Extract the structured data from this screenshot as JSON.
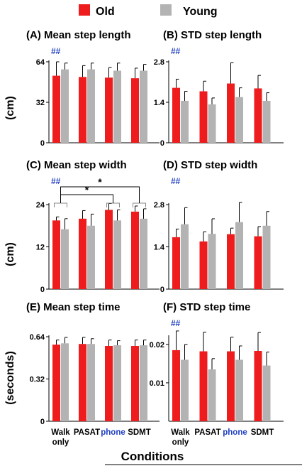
{
  "legend": [
    {
      "label": "Old",
      "color": "#ee1c1c"
    },
    {
      "label": "Young",
      "color": "#b3b3b3"
    }
  ],
  "xlabel": "Conditions",
  "categories": [
    {
      "lines": [
        "Walk",
        "only"
      ],
      "color": "#000000"
    },
    {
      "lines": [
        "PASAT"
      ],
      "color": "#000000"
    },
    {
      "lines": [
        "phone"
      ],
      "color": "#1f3fbf"
    },
    {
      "lines": [
        "SDMT"
      ],
      "color": "#000000"
    }
  ],
  "row_ylabels": [
    "(cm)",
    "(cm)",
    "(seconds)"
  ],
  "annotation_color": "#1f3fbf",
  "chart_data": [
    {
      "type": "bar",
      "panel": "(A)",
      "title": "Mean step length",
      "ylim": [
        0,
        64
      ],
      "ticks": [
        "0",
        "32",
        "64"
      ],
      "tick_values": [
        0,
        32,
        64
      ],
      "series": [
        {
          "name": "Old",
          "values": [
            53,
            52,
            51.5,
            51
          ],
          "errors": [
            11,
            9,
            8,
            8
          ]
        },
        {
          "name": "Young",
          "values": [
            58,
            58,
            57,
            57
          ],
          "errors": [
            5,
            5,
            6,
            5
          ]
        }
      ],
      "annotation": "##"
    },
    {
      "type": "bar",
      "panel": "(B)",
      "title": "STD step length",
      "ylim": [
        0,
        2.8
      ],
      "ticks": [
        "0",
        "1.4",
        "2.8"
      ],
      "tick_values": [
        0,
        1.4,
        2.8
      ],
      "series": [
        {
          "name": "Old",
          "values": [
            1.9,
            1.78,
            2.05,
            1.88
          ],
          "errors": [
            0.3,
            0.35,
            0.72,
            0.45
          ]
        },
        {
          "name": "Young",
          "values": [
            1.45,
            1.33,
            1.58,
            1.45
          ],
          "errors": [
            0.33,
            0.22,
            0.32,
            0.28
          ]
        }
      ],
      "annotation": "##"
    },
    {
      "type": "bar",
      "panel": "(C)",
      "title": "Mean step width",
      "ylim": [
        0,
        24
      ],
      "ticks": [
        "0",
        "12",
        "24"
      ],
      "tick_values": [
        0,
        12,
        24
      ],
      "series": [
        {
          "name": "Old",
          "values": [
            19.5,
            20,
            22.5,
            22
          ],
          "errors": [
            1,
            2.3,
            1.8,
            1.6
          ]
        },
        {
          "name": "Young",
          "values": [
            17,
            18,
            19.5,
            20
          ],
          "errors": [
            3,
            3.3,
            3,
            2.8
          ]
        }
      ],
      "annotation": "##",
      "significance": [
        {
          "from": 0,
          "to": 2,
          "label": "*"
        },
        {
          "from": 0,
          "to": 3,
          "label": "*"
        }
      ]
    },
    {
      "type": "bar",
      "panel": "(D)",
      "title": "STD step width",
      "ylim": [
        0,
        2.8
      ],
      "ticks": [
        "0",
        "1.4",
        "2.8"
      ],
      "tick_values": [
        0,
        1.4,
        2.8
      ],
      "series": [
        {
          "name": "Old",
          "values": [
            1.72,
            1.58,
            1.82,
            1.75
          ],
          "errors": [
            0.27,
            0.32,
            0.2,
            0.32
          ]
        },
        {
          "name": "Young",
          "values": [
            2.15,
            1.83,
            2.22,
            2.1
          ],
          "errors": [
            0.55,
            0.5,
            0.65,
            0.47
          ]
        }
      ],
      "annotation": "##"
    },
    {
      "type": "bar",
      "panel": "(E)",
      "title": "Mean step time",
      "ylim": [
        0,
        0.64
      ],
      "ticks": [
        "0",
        "0.32",
        "0.64"
      ],
      "tick_values": [
        0,
        0.32,
        0.64
      ],
      "series": [
        {
          "name": "Old",
          "values": [
            0.58,
            0.585,
            0.57,
            0.57
          ],
          "errors": [
            0.035,
            0.05,
            0.045,
            0.045
          ]
        },
        {
          "name": "Young",
          "values": [
            0.59,
            0.585,
            0.575,
            0.575
          ],
          "errors": [
            0.045,
            0.04,
            0.035,
            0.04
          ]
        }
      ],
      "annotation": ""
    },
    {
      "type": "bar",
      "panel": "(F)",
      "title": "STD step time",
      "ylim": [
        0,
        0.022
      ],
      "ticks": [
        "0.01",
        "0.02"
      ],
      "tick_values": [
        0.01,
        0.02
      ],
      "series": [
        {
          "name": "Old",
          "values": [
            0.0185,
            0.0182,
            0.0182,
            0.0183
          ],
          "errors": [
            0.005,
            0.005,
            0.0037,
            0.0048
          ]
        },
        {
          "name": "Young",
          "values": [
            0.016,
            0.0135,
            0.016,
            0.0145
          ],
          "errors": [
            0.004,
            0.0028,
            0.0036,
            0.0035
          ]
        }
      ],
      "annotation": "##"
    }
  ]
}
